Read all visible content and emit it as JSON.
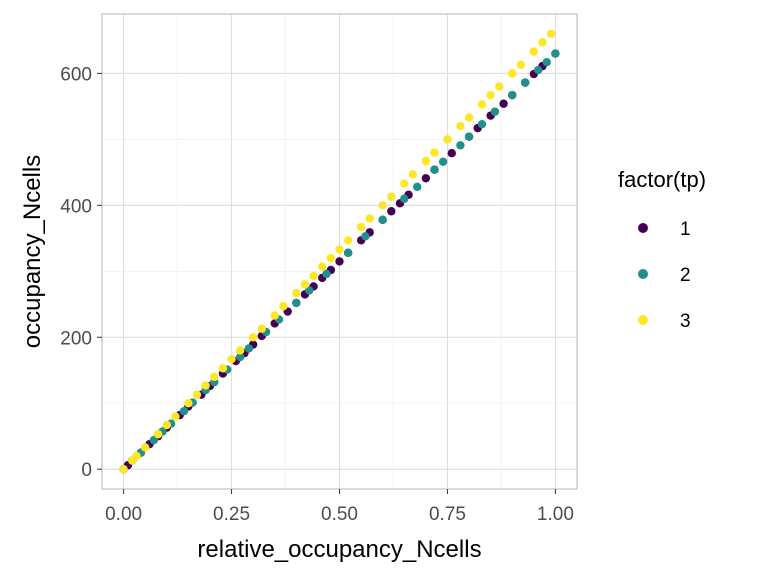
{
  "chart_data": {
    "type": "scatter",
    "xlabel": "relative_occupancy_Ncells",
    "ylabel": "occupancy_Ncells",
    "xlim": [
      -0.05,
      1.05
    ],
    "ylim": [
      -30,
      690
    ],
    "x_ticks": [
      0.0,
      0.25,
      0.5,
      0.75,
      1.0
    ],
    "x_tick_labels": [
      "0.00",
      "0.25",
      "0.50",
      "0.75",
      "1.00"
    ],
    "y_ticks": [
      0,
      200,
      400,
      600
    ],
    "y_tick_labels": [
      "0",
      "200",
      "400",
      "600"
    ],
    "grid": true,
    "legend": {
      "title": "factor(tp)",
      "position": "right",
      "entries": [
        "1",
        "2",
        "3"
      ]
    },
    "series": [
      {
        "name": "1",
        "color": "#440154",
        "x": [
          0.0,
          0.01,
          0.02,
          0.04,
          0.06,
          0.08,
          0.1,
          0.13,
          0.15,
          0.18,
          0.2,
          0.23,
          0.26,
          0.28,
          0.3,
          0.32,
          0.35,
          0.38,
          0.4,
          0.42,
          0.44,
          0.46,
          0.48,
          0.5,
          0.52,
          0.55,
          0.57,
          0.6,
          0.62,
          0.64,
          0.66,
          0.7,
          0.72,
          0.76,
          0.8,
          0.82,
          0.85,
          0.88,
          0.9,
          0.93,
          0.95,
          0.97,
          1.0
        ],
        "y": [
          0,
          6,
          13,
          25,
          38,
          50,
          63,
          82,
          95,
          113,
          126,
          145,
          164,
          176,
          189,
          202,
          221,
          239,
          252,
          265,
          277,
          290,
          302,
          315,
          328,
          347,
          359,
          378,
          391,
          403,
          416,
          441,
          454,
          479,
          504,
          517,
          536,
          554,
          567,
          586,
          599,
          611,
          630
        ]
      },
      {
        "name": "2",
        "color": "#21908C",
        "x": [
          0.0,
          0.02,
          0.04,
          0.07,
          0.09,
          0.11,
          0.14,
          0.16,
          0.19,
          0.21,
          0.24,
          0.27,
          0.29,
          0.33,
          0.36,
          0.4,
          0.43,
          0.47,
          0.52,
          0.56,
          0.6,
          0.65,
          0.68,
          0.72,
          0.74,
          0.78,
          0.8,
          0.83,
          0.86,
          0.9,
          0.93,
          0.96,
          0.98,
          1.0
        ],
        "y": [
          0,
          13,
          25,
          44,
          57,
          69,
          88,
          101,
          120,
          132,
          151,
          170,
          183,
          208,
          227,
          252,
          271,
          296,
          328,
          353,
          378,
          410,
          428,
          454,
          466,
          491,
          504,
          523,
          542,
          567,
          586,
          605,
          617,
          630
        ]
      },
      {
        "name": "3",
        "color": "#FDE725",
        "x": [
          0.0,
          0.02,
          0.03,
          0.05,
          0.08,
          0.1,
          0.12,
          0.15,
          0.17,
          0.19,
          0.21,
          0.23,
          0.25,
          0.27,
          0.3,
          0.32,
          0.35,
          0.37,
          0.4,
          0.42,
          0.44,
          0.46,
          0.48,
          0.5,
          0.52,
          0.55,
          0.57,
          0.6,
          0.62,
          0.65,
          0.67,
          0.7,
          0.72,
          0.75,
          0.78,
          0.8,
          0.83,
          0.85,
          0.87,
          0.9,
          0.92,
          0.95,
          0.97,
          0.99
        ],
        "y": [
          0,
          13,
          20,
          33,
          53,
          67,
          80,
          100,
          113,
          127,
          140,
          153,
          167,
          180,
          200,
          213,
          233,
          247,
          267,
          280,
          293,
          307,
          320,
          333,
          347,
          367,
          380,
          400,
          413,
          433,
          447,
          467,
          480,
          500,
          520,
          533,
          553,
          567,
          580,
          600,
          613,
          633,
          647,
          660
        ]
      }
    ]
  }
}
